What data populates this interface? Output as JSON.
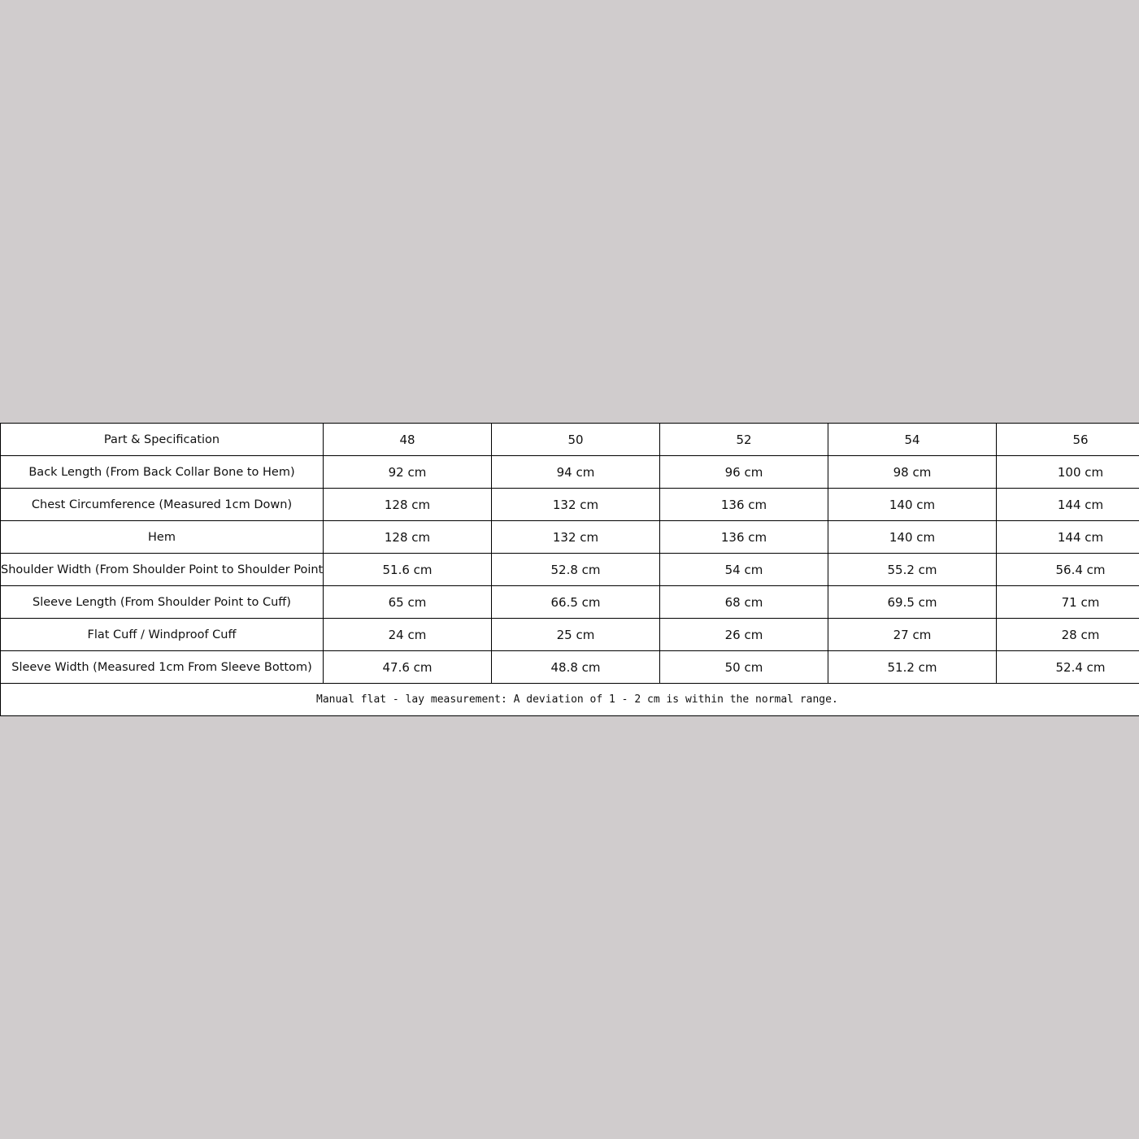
{
  "table": {
    "headers": [
      "Part & Specification",
      "48",
      "50",
      "52",
      "54",
      "56"
    ],
    "rows": [
      [
        "Back Length (From Back Collar Bone to Hem)",
        "92 cm",
        "94 cm",
        "96 cm",
        "98 cm",
        "100 cm"
      ],
      [
        "Chest Circumference (Measured 1cm Down)",
        "128 cm",
        "132 cm",
        "136 cm",
        "140 cm",
        "144 cm"
      ],
      [
        "Hem",
        "128 cm",
        "132 cm",
        "136 cm",
        "140 cm",
        "144 cm"
      ],
      [
        "Shoulder Width (From Shoulder Point to Shoulder Point)",
        "51.6 cm",
        "52.8 cm",
        "54 cm",
        "55.2 cm",
        "56.4 cm"
      ],
      [
        "Sleeve Length (From Shoulder Point to Cuff)",
        "65 cm",
        "66.5 cm",
        "68 cm",
        "69.5 cm",
        "71 cm"
      ],
      [
        "Flat Cuff / Windproof Cuff",
        "24 cm",
        "25 cm",
        "26 cm",
        "27 cm",
        "28 cm"
      ],
      [
        "Sleeve Width (Measured 1cm From Sleeve Bottom)",
        "47.6 cm",
        "48.8 cm",
        "50 cm",
        "51.2 cm",
        "52.4 cm"
      ]
    ],
    "note": "Manual flat - lay measurement: A deviation of 1 - 2 cm is within the normal range."
  }
}
